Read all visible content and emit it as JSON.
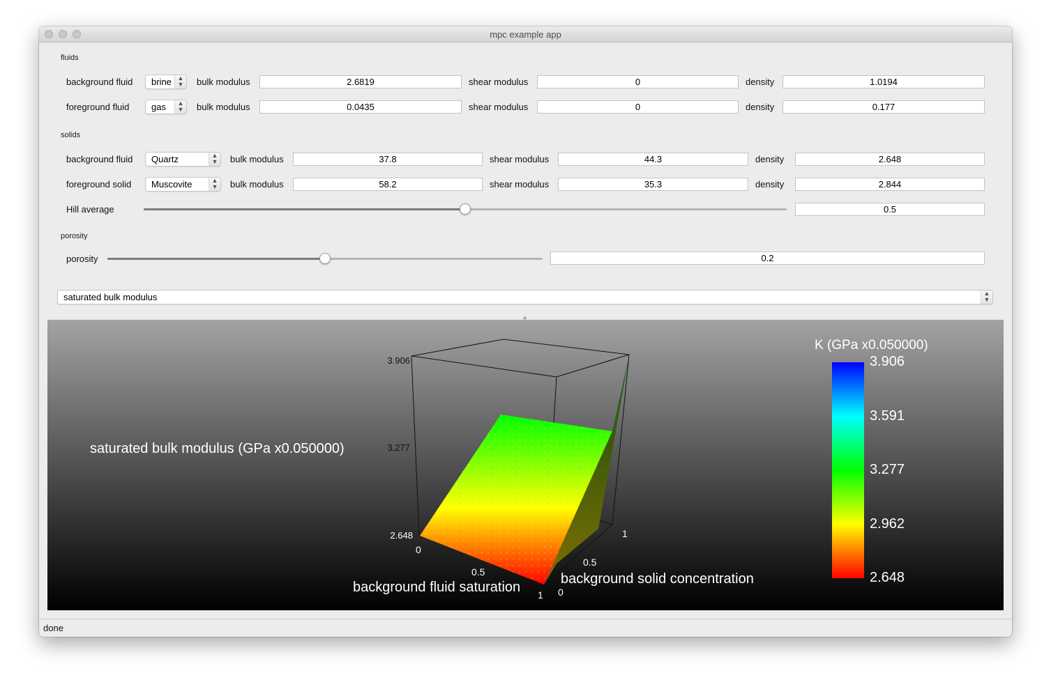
{
  "window": {
    "title": "mpc example app"
  },
  "fluids": {
    "section_label": "fluids",
    "rows": [
      {
        "label": "background fluid",
        "selection": "brine",
        "bulk_label": "bulk modulus",
        "bulk": "2.6819",
        "shear_label": "shear modulus",
        "shear": "0",
        "density_label": "density",
        "density": "1.0194"
      },
      {
        "label": "foreground fluid",
        "selection": "gas",
        "bulk_label": "bulk modulus",
        "bulk": "0.0435",
        "shear_label": "shear modulus",
        "shear": "0",
        "density_label": "density",
        "density": "0.177"
      }
    ]
  },
  "solids": {
    "section_label": "solids",
    "rows": [
      {
        "label": "background fluid",
        "selection": "Quartz",
        "bulk_label": "bulk modulus",
        "bulk": "37.8",
        "shear_label": "shear modulus",
        "shear": "44.3",
        "density_label": "density",
        "density": "2.648"
      },
      {
        "label": "foreground solid",
        "selection": "Muscovite",
        "bulk_label": "bulk modulus",
        "bulk": "58.2",
        "shear_label": "shear modulus",
        "shear": "35.3",
        "density_label": "density",
        "density": "2.844"
      }
    ],
    "hill_label": "Hill average",
    "hill_value": "0.5",
    "hill_fraction": 0.5
  },
  "porosity": {
    "section_label": "porosity",
    "label": "porosity",
    "value": "0.2",
    "fraction": 0.5
  },
  "property_select": "saturated bulk modulus",
  "plot": {
    "z_axis_title": "saturated bulk modulus (GPa x0.050000)",
    "x_axis_title": "background fluid saturation",
    "y_axis_title": "background solid concentration",
    "z_ticks": [
      "3.906",
      "3.277",
      "2.648"
    ],
    "x_ticks": [
      "0",
      "0.5",
      "1"
    ],
    "y_ticks": [
      "1",
      "0.5",
      "0"
    ],
    "legend_title": "K (GPa x0.050000)",
    "legend_ticks": [
      "3.906",
      "3.591",
      "3.277",
      "2.962",
      "2.648"
    ],
    "colors": {
      "low": "#ff0000",
      "mid_low": "#ffff00",
      "mid": "#00ff00",
      "mid_high": "#00ffff",
      "high": "#0000ff"
    }
  },
  "status": "done"
}
